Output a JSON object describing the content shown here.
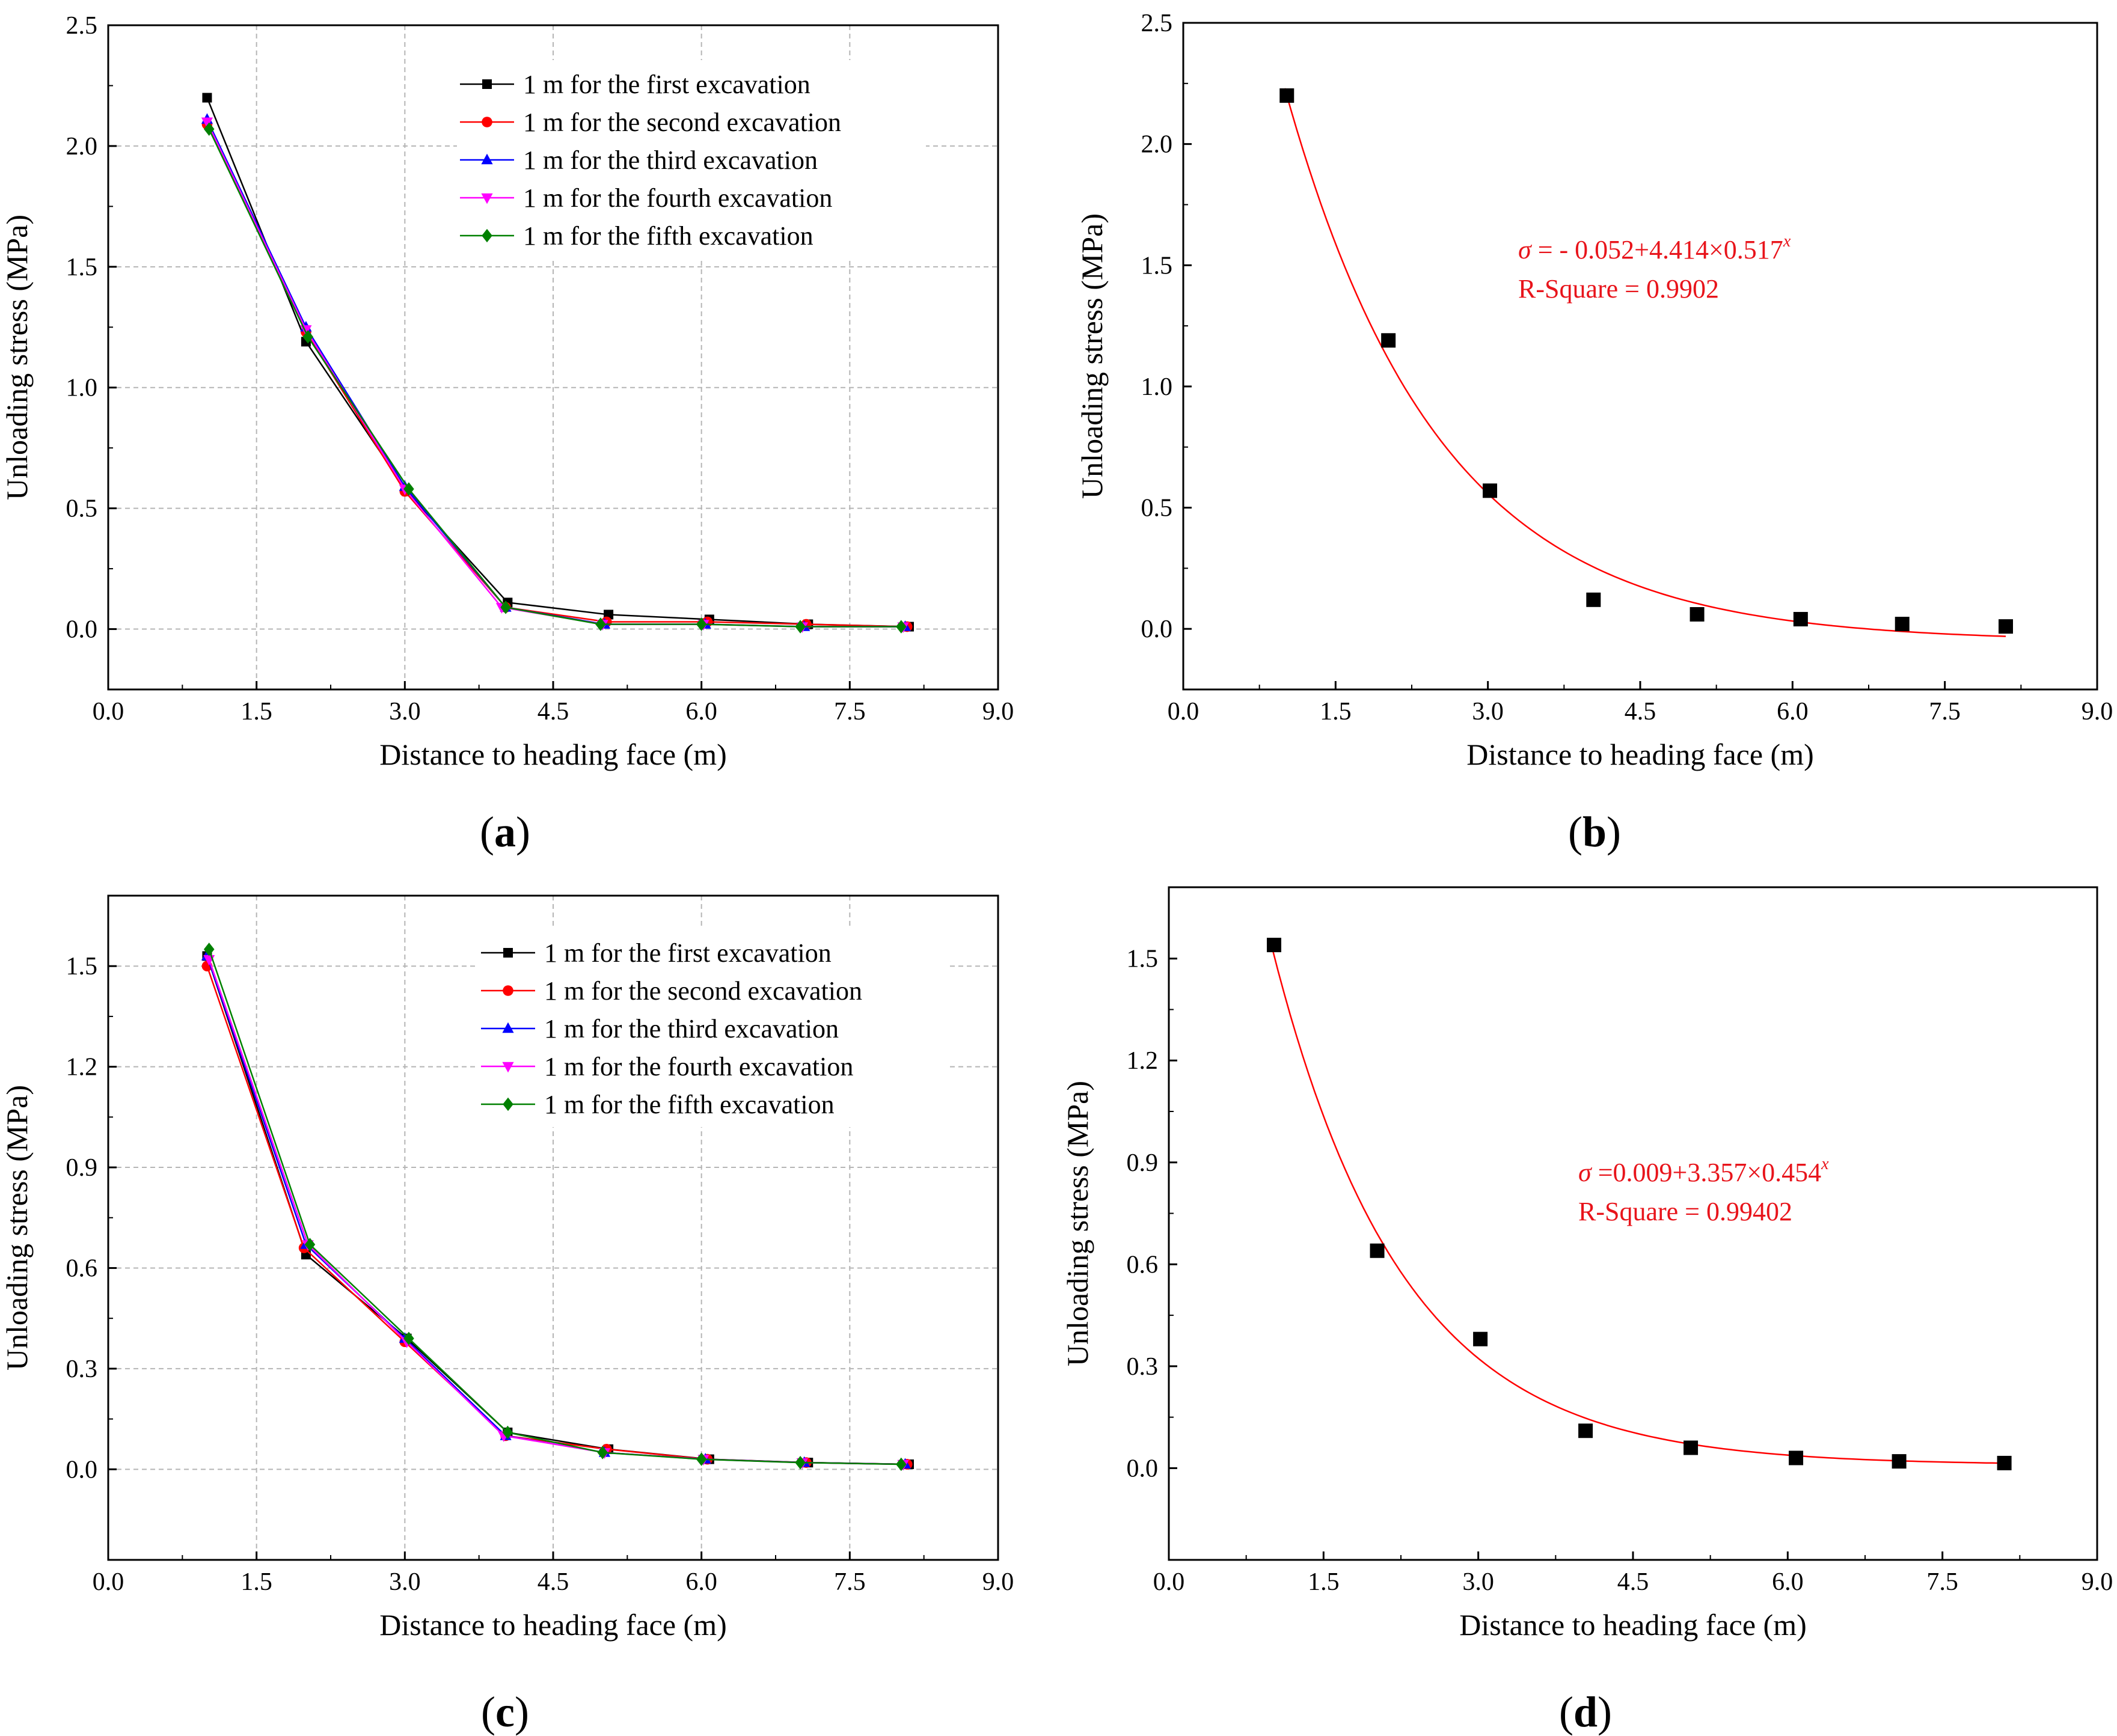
{
  "figure": {
    "panels": [
      "a",
      "b",
      "c",
      "d"
    ]
  },
  "chart_data": [
    {
      "panel": "(a)",
      "panel_letter": "a",
      "type": "line",
      "xlabel": "Distance to heading face (m)",
      "ylabel": "Unloading stress (MPa)",
      "xlim": [
        0,
        9
      ],
      "ylim": [
        -0.25,
        2.5
      ],
      "xticks": [
        "0.0",
        "1.5",
        "3.0",
        "4.5",
        "6.0",
        "7.5",
        "9.0"
      ],
      "yticks": [
        "0.0",
        "0.5",
        "1.0",
        "1.5",
        "2.0",
        "2.5"
      ],
      "grid": true,
      "legend_position": "top-right",
      "series": [
        {
          "name": "1 m for the first excavation",
          "color": "#000000",
          "marker": "square",
          "x": [
            1.0,
            2.0,
            3.02,
            4.04,
            5.06,
            6.08,
            7.08,
            8.1
          ],
          "y": [
            2.2,
            1.19,
            0.57,
            0.11,
            0.06,
            0.04,
            0.02,
            0.01
          ]
        },
        {
          "name": "1 m for the second excavation",
          "color": "#ff0000",
          "marker": "circle",
          "x": [
            1.0,
            2.0,
            3.0,
            4.02,
            5.04,
            6.06,
            7.06,
            8.08
          ],
          "y": [
            2.09,
            1.23,
            0.57,
            0.09,
            0.03,
            0.03,
            0.02,
            0.01
          ]
        },
        {
          "name": "1 m for the third excavation",
          "color": "#0000ff",
          "marker": "triangle-up",
          "x": [
            1.0,
            2.0,
            3.0,
            4.02,
            5.02,
            6.04,
            7.04,
            8.06
          ],
          "y": [
            2.11,
            1.25,
            0.59,
            0.09,
            0.02,
            0.02,
            0.01,
            0.01
          ]
        },
        {
          "name": "1 m for the fourth excavation",
          "color": "#ff00ff",
          "marker": "triangle-down",
          "x": [
            1.0,
            2.0,
            3.0,
            3.98,
            5.0,
            6.02,
            7.02,
            8.04
          ],
          "y": [
            2.1,
            1.24,
            0.58,
            0.09,
            0.02,
            0.02,
            0.01,
            0.01
          ]
        },
        {
          "name": "1 m for the fifth excavation",
          "color": "#008000",
          "marker": "diamond",
          "x": [
            1.02,
            2.02,
            3.04,
            4.02,
            4.98,
            6.0,
            7.0,
            8.02
          ],
          "y": [
            2.07,
            1.21,
            0.58,
            0.09,
            0.02,
            0.02,
            0.01,
            0.01
          ]
        }
      ]
    },
    {
      "panel": "(b)",
      "panel_letter": "b",
      "type": "scatter",
      "xlabel": "Distance to heading face (m)",
      "ylabel": "Unloading stress (MPa)",
      "xlim": [
        0,
        9
      ],
      "ylim": [
        -0.25,
        2.5
      ],
      "xticks": [
        "0.0",
        "1.5",
        "3.0",
        "4.5",
        "6.0",
        "7.5",
        "9.0"
      ],
      "yticks": [
        "0.0",
        "0.5",
        "1.0",
        "1.5",
        "2.0",
        "2.5"
      ],
      "grid": false,
      "points": {
        "color": "#000000",
        "x": [
          1.02,
          2.02,
          3.02,
          4.04,
          5.06,
          6.08,
          7.08,
          8.1
        ],
        "y": [
          2.2,
          1.19,
          0.57,
          0.12,
          0.06,
          0.04,
          0.02,
          0.01
        ]
      },
      "fit": {
        "a": -0.052,
        "b": 4.414,
        "c": 0.517,
        "x_range": [
          1.0,
          8.1
        ],
        "color": "#ff0000"
      },
      "equation": {
        "sym": "σ",
        "mid": " = - 0.052+4.414×0.517",
        "sup": "x"
      },
      "r_square": "R-Square = 0.9902"
    },
    {
      "panel": "(c)",
      "panel_letter": "c",
      "type": "line",
      "xlabel": "Distance to heading face (m)",
      "ylabel": "Unloading stress (MPa)",
      "xlim": [
        0,
        9
      ],
      "ylim": [
        -0.27,
        1.71
      ],
      "xticks": [
        "0.0",
        "1.5",
        "3.0",
        "4.5",
        "6.0",
        "7.5",
        "9.0"
      ],
      "yticks": [
        "0.0",
        "0.3",
        "0.6",
        "0.9",
        "1.2",
        "1.5"
      ],
      "grid": true,
      "legend_position": "top-right",
      "series": [
        {
          "name": "1 m for the first excavation",
          "color": "#000000",
          "marker": "square",
          "x": [
            1.0,
            2.0,
            3.02,
            4.04,
            5.06,
            6.08,
            7.08,
            8.1
          ],
          "y": [
            1.53,
            0.64,
            0.39,
            0.11,
            0.06,
            0.03,
            0.02,
            0.015
          ]
        },
        {
          "name": "1 m for the second excavation",
          "color": "#ff0000",
          "marker": "circle",
          "x": [
            1.0,
            1.98,
            3.0,
            4.02,
            5.04,
            6.06,
            7.06,
            8.08
          ],
          "y": [
            1.5,
            0.66,
            0.38,
            0.1,
            0.06,
            0.03,
            0.02,
            0.015
          ]
        },
        {
          "name": "1 m for the third excavation",
          "color": "#0000ff",
          "marker": "triangle-up",
          "x": [
            1.0,
            2.0,
            3.0,
            4.02,
            5.02,
            6.04,
            7.04,
            8.06
          ],
          "y": [
            1.53,
            0.67,
            0.39,
            0.1,
            0.05,
            0.03,
            0.02,
            0.015
          ]
        },
        {
          "name": "1 m for the fourth excavation",
          "color": "#ff00ff",
          "marker": "triangle-down",
          "x": [
            1.02,
            2.02,
            3.02,
            4.0,
            5.02,
            6.02,
            7.02,
            8.04
          ],
          "y": [
            1.52,
            0.67,
            0.38,
            0.1,
            0.05,
            0.03,
            0.02,
            0.015
          ]
        },
        {
          "name": "1 m for the fifth excavation",
          "color": "#008000",
          "marker": "diamond",
          "x": [
            1.02,
            2.04,
            3.04,
            4.04,
            5.0,
            6.0,
            7.0,
            8.02
          ],
          "y": [
            1.55,
            0.67,
            0.39,
            0.11,
            0.05,
            0.03,
            0.02,
            0.015
          ]
        }
      ]
    },
    {
      "panel": "(d)",
      "panel_letter": "d",
      "type": "scatter",
      "xlabel": "Distance to heading face (m)",
      "ylabel": "Unloading stress (MPa)",
      "xlim": [
        0,
        9
      ],
      "ylim": [
        -0.27,
        1.71
      ],
      "xticks": [
        "0.0",
        "1.5",
        "3.0",
        "4.5",
        "6.0",
        "7.5",
        "9.0"
      ],
      "yticks": [
        "0.0",
        "0.3",
        "0.6",
        "0.9",
        "1.2",
        "1.5"
      ],
      "grid": false,
      "points": {
        "color": "#000000",
        "x": [
          1.02,
          2.02,
          3.02,
          4.04,
          5.06,
          6.08,
          7.08,
          8.1
        ],
        "y": [
          1.54,
          0.64,
          0.38,
          0.11,
          0.06,
          0.03,
          0.02,
          0.015
        ]
      },
      "fit": {
        "a": 0.009,
        "b": 3.357,
        "c": 0.454,
        "x_range": [
          1.0,
          8.1
        ],
        "color": "#ff0000"
      },
      "equation": {
        "sym": "σ",
        "mid": " =0.009+3.357×0.454",
        "sup": "x"
      },
      "r_square": "R-Square = 0.99402"
    }
  ]
}
